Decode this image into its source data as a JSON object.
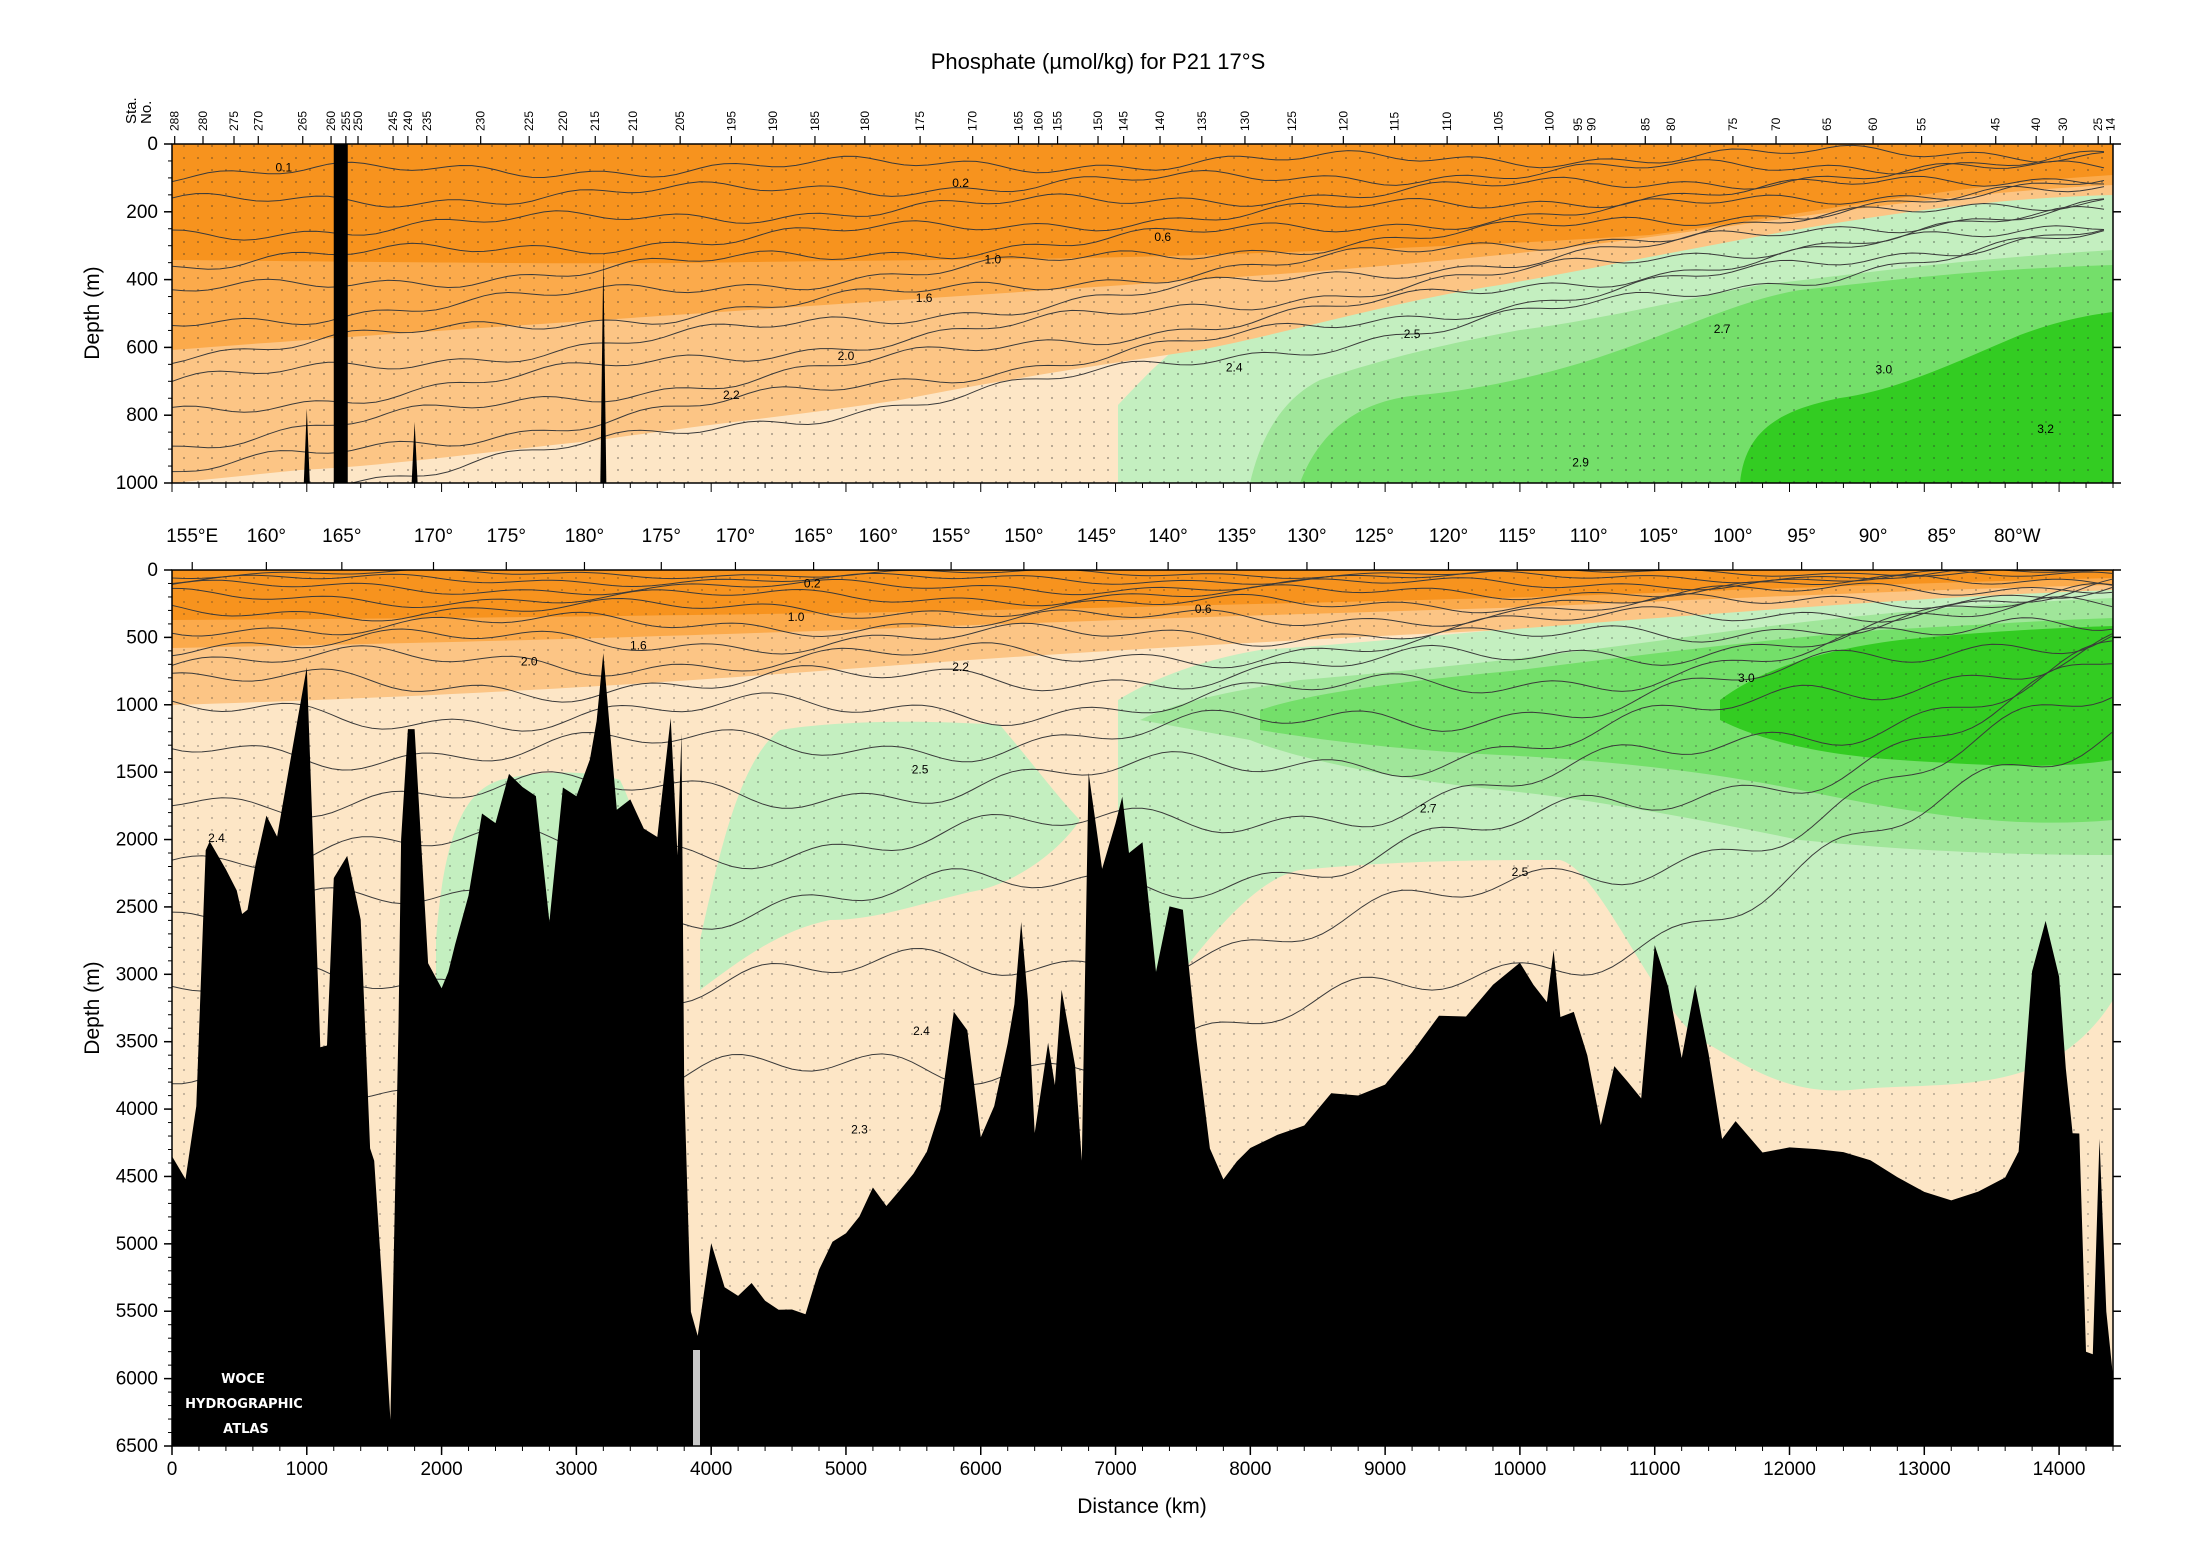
{
  "figure": {
    "title": "Phosphate (µmol/kg) for P21 17°S",
    "station_axis_label_line1": "Sta.",
    "station_axis_label_line2": "No.",
    "logo_lines": [
      "WOCE",
      "HYDROGRAPHIC",
      "ATLAS"
    ]
  },
  "colors": {
    "orange_dark": "#f7931e",
    "orange_mid": "#fbaa4b",
    "orange_light": "#fcc585",
    "peach": "#fde6c6",
    "green_pale": "#c4efc0",
    "green_light": "#a0e69a",
    "green_mid": "#74df6a",
    "green_dark": "#33cc22",
    "seafloor": "#000000",
    "contour_line": "#3a3a3a"
  },
  "chart_data": [
    {
      "type": "heatmap",
      "panel": "upper",
      "variable": "Phosphate (µmol/kg)",
      "xlabel": "",
      "ylabel": "Depth (m)",
      "xlim": [
        0,
        14400
      ],
      "ylim": [
        1000,
        0
      ],
      "yticks": [
        0,
        200,
        400,
        600,
        800,
        1000
      ],
      "station_ticks": [
        "288",
        "280",
        "275",
        "270",
        "265",
        "260",
        "255",
        "250",
        "245",
        "240",
        "235",
        "230",
        "225",
        "220",
        "215",
        "210",
        "205",
        "195",
        "190",
        "185",
        "180",
        "175",
        "170",
        "165",
        "160",
        "155",
        "150",
        "145",
        "140",
        "135",
        "130",
        "125",
        "120",
        "115",
        "110",
        "105",
        "100",
        "95",
        "90",
        "85",
        "80",
        "75",
        "70",
        "65",
        "60",
        "55",
        "45",
        "40",
        "30",
        "25",
        "14"
      ],
      "station_positions_km": [
        20,
        230,
        460,
        640,
        970,
        1180,
        1290,
        1380,
        1640,
        1750,
        1890,
        2290,
        2650,
        2900,
        3140,
        3420,
        3770,
        4150,
        4460,
        4770,
        5140,
        5550,
        5940,
        6280,
        6430,
        6570,
        6870,
        7060,
        7330,
        7640,
        7960,
        8310,
        8690,
        9070,
        9460,
        9840,
        10220,
        10430,
        10530,
        10930,
        11120,
        11580,
        11900,
        12280,
        12620,
        12980,
        13530,
        13830,
        14030,
        14290,
        14380
      ],
      "contour_labels": [
        {
          "value": "0.1",
          "x_km": 830,
          "depth_m": 70
        },
        {
          "value": "0.2",
          "x_km": 5850,
          "depth_m": 115
        },
        {
          "value": "0.6",
          "x_km": 7350,
          "depth_m": 275
        },
        {
          "value": "1.0",
          "x_km": 6090,
          "depth_m": 340
        },
        {
          "value": "1.6",
          "x_km": 5580,
          "depth_m": 455
        },
        {
          "value": "2.0",
          "x_km": 5000,
          "depth_m": 625
        },
        {
          "value": "2.2",
          "x_km": 4150,
          "depth_m": 740
        },
        {
          "value": "2.4",
          "x_km": 7880,
          "depth_m": 660
        },
        {
          "value": "2.5",
          "x_km": 9200,
          "depth_m": 560
        },
        {
          "value": "2.7",
          "x_km": 11500,
          "depth_m": 545
        },
        {
          "value": "3.0",
          "x_km": 12700,
          "depth_m": 665
        },
        {
          "value": "3.2",
          "x_km": 13900,
          "depth_m": 840
        },
        {
          "value": "2.9",
          "x_km": 10450,
          "depth_m": 940
        }
      ]
    },
    {
      "type": "heatmap",
      "panel": "lower",
      "variable": "Phosphate (µmol/kg)",
      "xlabel": "Distance (km)",
      "ylabel": "Depth (m)",
      "xlim": [
        0,
        14400
      ],
      "ylim": [
        6500,
        0
      ],
      "xticks": [
        0,
        1000,
        2000,
        3000,
        4000,
        5000,
        6000,
        7000,
        8000,
        9000,
        10000,
        11000,
        12000,
        13000,
        14000
      ],
      "yticks": [
        0,
        500,
        1000,
        1500,
        2000,
        2500,
        3000,
        3500,
        4000,
        4500,
        5000,
        5500,
        6000,
        6500
      ],
      "longitude_labels": [
        "155°E",
        "160°",
        "165°",
        "170°",
        "175°",
        "180°",
        "175°",
        "170°",
        "165°",
        "160°",
        "155°",
        "150°",
        "145°",
        "140°",
        "135°",
        "130°",
        "125°",
        "120°",
        "115°",
        "110°",
        "105°",
        "100°",
        "95°",
        "90°",
        "85°",
        "80°W"
      ],
      "longitude_positions_km": [
        150,
        700,
        1260,
        1940,
        2480,
        3060,
        3630,
        4180,
        4760,
        5240,
        5780,
        6320,
        6860,
        7390,
        7900,
        8420,
        8920,
        9470,
        9980,
        10510,
        11030,
        11580,
        12090,
        12620,
        13130,
        13690
      ],
      "contour_labels": [
        {
          "value": "0.2",
          "x_km": 4750,
          "depth_m": 100
        },
        {
          "value": "1.0",
          "x_km": 4630,
          "depth_m": 350
        },
        {
          "value": "0.6",
          "x_km": 7650,
          "depth_m": 290
        },
        {
          "value": "1.6",
          "x_km": 3460,
          "depth_m": 560
        },
        {
          "value": "2.0",
          "x_km": 2650,
          "depth_m": 680
        },
        {
          "value": "2.2",
          "x_km": 5850,
          "depth_m": 720
        },
        {
          "value": "3.0",
          "x_km": 11680,
          "depth_m": 800
        },
        {
          "value": "2.5",
          "x_km": 5550,
          "depth_m": 1480
        },
        {
          "value": "2.7",
          "x_km": 9320,
          "depth_m": 1770
        },
        {
          "value": "2.5",
          "x_km": 10000,
          "depth_m": 2240
        },
        {
          "value": "2.4",
          "x_km": 330,
          "depth_m": 1990
        },
        {
          "value": "2.4",
          "x_km": 5560,
          "depth_m": 3420
        },
        {
          "value": "2.3",
          "x_km": 5100,
          "depth_m": 4150
        }
      ],
      "seafloor_depth_profile": {
        "x_km": [
          0,
          100,
          180,
          250,
          280,
          400,
          480,
          520,
          560,
          620,
          700,
          780,
          900,
          1000,
          1100,
          1150,
          1200,
          1300,
          1400,
          1470,
          1500,
          1560,
          1620,
          1680,
          1700,
          1750,
          1800,
          1900,
          2000,
          2050,
          2100,
          2200,
          2300,
          2400,
          2500,
          2600,
          2700,
          2800,
          2900,
          3000,
          3100,
          3150,
          3200,
          3300,
          3400,
          3500,
          3600,
          3700,
          3750,
          3780,
          3800,
          3850,
          3900,
          4000,
          4100,
          4200,
          4300,
          4400,
          4500,
          4600,
          4700,
          4800,
          4900,
          5000,
          5100,
          5200,
          5300,
          5400,
          5500,
          5600,
          5700,
          5800,
          5900,
          6000,
          6100,
          6200,
          6250,
          6300,
          6350,
          6400,
          6500,
          6550,
          6600,
          6700,
          6750,
          6800,
          6900,
          7000,
          7050,
          7100,
          7200,
          7300,
          7400,
          7500,
          7600,
          7700,
          7800,
          7900,
          8000,
          8200,
          8400,
          8600,
          8800,
          9000,
          9200,
          9400,
          9600,
          9800,
          10000,
          10100,
          10200,
          10250,
          10300,
          10400,
          10500,
          10600,
          10700,
          10800,
          10900,
          11000,
          11100,
          11200,
          11300,
          11400,
          11500,
          11600,
          11800,
          12000,
          12200,
          12400,
          12600,
          12800,
          13000,
          13200,
          13400,
          13600,
          13700,
          13800,
          13900,
          14000,
          14050,
          14100,
          14150,
          14200,
          14250,
          14300,
          14350,
          14400
        ],
        "depth_m": [
          4350,
          4500,
          4000,
          2100,
          2000,
          2200,
          2400,
          2550,
          2500,
          2200,
          1800,
          2000,
          1300,
          700,
          3550,
          3550,
          2300,
          2100,
          2600,
          4300,
          4400,
          5300,
          6300,
          3400,
          2000,
          1200,
          1200,
          2900,
          3100,
          3000,
          2800,
          2400,
          1800,
          1900,
          1500,
          1600,
          1700,
          2600,
          1600,
          1700,
          1400,
          1100,
          600,
          1800,
          1700,
          1900,
          2000,
          1100,
          2100,
          1200,
          3800,
          5500,
          5700,
          5000,
          5300,
          5400,
          5300,
          5400,
          5500,
          5500,
          5500,
          5200,
          5000,
          4900,
          4800,
          4600,
          4700,
          4600,
          4500,
          4300,
          4000,
          3300,
          3400,
          4200,
          4000,
          3500,
          3200,
          2600,
          3200,
          4200,
          3500,
          3800,
          3100,
          3700,
          4400,
          1500,
          2200,
          1900,
          1700,
          2100,
          2000,
          3000,
          2500,
          2500,
          3500,
          4300,
          4500,
          4400,
          4300,
          4200,
          4100,
          3900,
          3900,
          3800,
          3600,
          3300,
          3300,
          3100,
          2900,
          3100,
          3200,
          2800,
          3300,
          3300,
          3600,
          4100,
          3700,
          3800,
          3900,
          2800,
          3100,
          3600,
          3100,
          3600,
          4200,
          4100,
          4300,
          4300,
          4300,
          4300,
          4400,
          4500,
          4600,
          4700,
          4600,
          4500,
          4300,
          3000,
          2600,
          3000,
          3700,
          4200,
          4200,
          5800,
          5800,
          4200,
          5500,
          6000
        ]
      }
    }
  ]
}
